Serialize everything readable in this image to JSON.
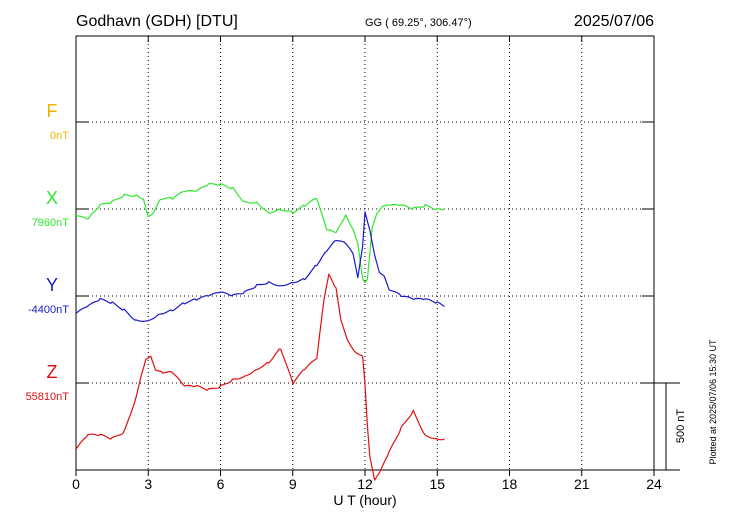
{
  "header": {
    "station": "Godhavn (GDH)  [DTU]",
    "coords": "GG ( 69.25°, 306.47°)",
    "date": "2025/07/06"
  },
  "plotted_note": "Plotted at 2025/07/06 15:30 UT",
  "scale_bar_label": "500 nT",
  "colors": {
    "F": "#f2b200",
    "X": "#2ee82e",
    "Y": "#1a1acc",
    "Z": "#e01010"
  },
  "chart_data": {
    "type": "line",
    "xlabel": "U T (hour)",
    "xlim": [
      0,
      24
    ],
    "xticks": [
      "0",
      "3",
      "6",
      "9",
      "12",
      "15",
      "18",
      "21",
      "24"
    ],
    "grid": true,
    "scale_nT_per_division": 500,
    "channels": [
      {
        "name": "F",
        "baseline_label": "0nT",
        "x": [],
        "y": []
      },
      {
        "name": "X",
        "baseline_label": "7960nT",
        "x": [
          0.0,
          0.5,
          1.0,
          1.5,
          2.0,
          2.5,
          2.8,
          3.0,
          3.2,
          3.5,
          4.0,
          4.5,
          5.0,
          5.5,
          6.0,
          6.5,
          7.0,
          7.5,
          8.0,
          8.5,
          9.0,
          9.5,
          10.0,
          10.4,
          10.8,
          11.2,
          11.5,
          11.7,
          11.9,
          12.0,
          12.1,
          12.3,
          12.5,
          12.8,
          13.0,
          13.5,
          14.0,
          14.5,
          15.0,
          15.3
        ],
        "y": [
          -40,
          -60,
          20,
          40,
          80,
          80,
          60,
          -40,
          -20,
          60,
          60,
          100,
          100,
          140,
          140,
          120,
          40,
          40,
          -20,
          0,
          -20,
          20,
          60,
          -120,
          -140,
          -40,
          -120,
          -200,
          -400,
          -420,
          -400,
          -100,
          -20,
          20,
          20,
          20,
          0,
          20,
          0,
          0
        ]
      },
      {
        "name": "Y",
        "baseline_label": "-4400nT",
        "x": [
          0.0,
          0.5,
          1.0,
          1.5,
          2.0,
          2.5,
          3.0,
          3.5,
          4.0,
          4.5,
          5.0,
          5.5,
          6.0,
          6.5,
          7.0,
          7.5,
          8.0,
          8.5,
          9.0,
          9.5,
          10.0,
          10.4,
          10.8,
          11.2,
          11.5,
          11.7,
          11.9,
          12.0,
          12.2,
          12.4,
          12.6,
          12.8,
          13.0,
          13.5,
          14.0,
          14.5,
          15.0,
          15.3
        ],
        "y": [
          -100,
          -60,
          -20,
          -40,
          -80,
          -140,
          -140,
          -100,
          -80,
          -40,
          -20,
          0,
          20,
          0,
          20,
          60,
          80,
          60,
          80,
          100,
          180,
          260,
          320,
          300,
          240,
          100,
          280,
          480,
          380,
          240,
          140,
          120,
          40,
          0,
          -20,
          -20,
          -40,
          -60
        ]
      },
      {
        "name": "Z",
        "baseline_label": "55810nT",
        "x": [
          0.0,
          0.5,
          1.0,
          1.5,
          2.0,
          2.5,
          2.7,
          2.9,
          3.1,
          3.3,
          3.6,
          4.0,
          4.5,
          5.0,
          5.5,
          6.0,
          6.5,
          7.0,
          7.5,
          8.0,
          8.5,
          9.0,
          9.5,
          10.0,
          10.3,
          10.5,
          10.8,
          11.0,
          11.3,
          11.6,
          11.9,
          12.0,
          12.1,
          12.2,
          12.4,
          12.6,
          13.0,
          13.5,
          14.0,
          14.5,
          15.0,
          15.3
        ],
        "y": [
          -380,
          -300,
          -300,
          -320,
          -280,
          -80,
          40,
          140,
          160,
          80,
          60,
          60,
          -20,
          -20,
          -40,
          -20,
          20,
          40,
          80,
          120,
          200,
          0,
          80,
          140,
          480,
          620,
          540,
          360,
          240,
          180,
          160,
          0,
          -240,
          -420,
          -560,
          -520,
          -400,
          -260,
          -160,
          -300,
          -320,
          -320
        ]
      }
    ]
  }
}
